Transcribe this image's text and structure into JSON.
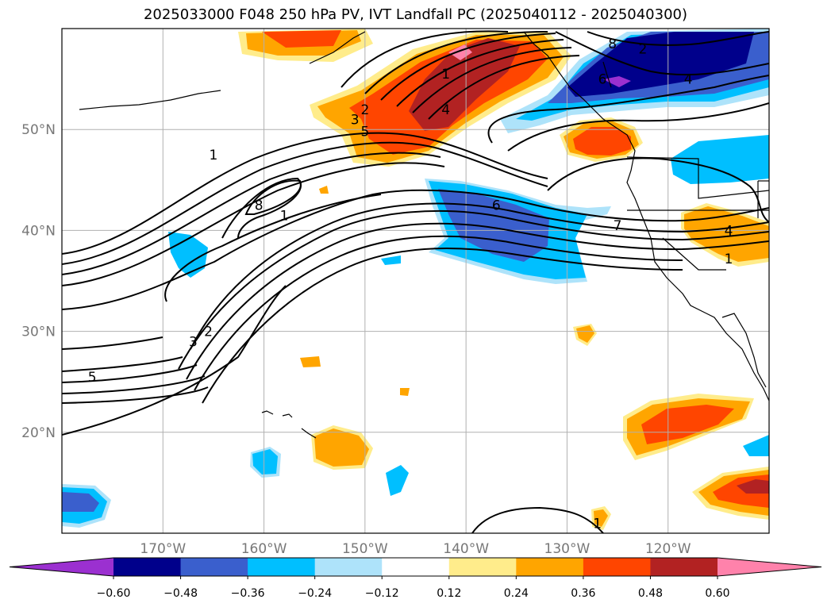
{
  "title": "2025033000 F048 250 hPa PV, IVT Landfall PC (2025040112 - 2025040300)",
  "map": {
    "lon_range": [
      180,
      110
    ],
    "lat_range": [
      10,
      60
    ],
    "lat_ticks": [
      {
        "value": 50,
        "label": "50°N"
      },
      {
        "value": 40,
        "label": "40°N"
      },
      {
        "value": 30,
        "label": "30°N"
      },
      {
        "value": 20,
        "label": "20°N"
      }
    ],
    "lon_ticks": [
      {
        "value": 170,
        "label": "170°W"
      },
      {
        "value": 160,
        "label": "160°W"
      },
      {
        "value": 150,
        "label": "150°W"
      },
      {
        "value": 140,
        "label": "140°W"
      },
      {
        "value": 130,
        "label": "130°W"
      },
      {
        "value": 120,
        "label": "120°W"
      }
    ],
    "grid": true,
    "contour_labels": [
      {
        "text": "1",
        "lon": 165.0,
        "lat": 47.5
      },
      {
        "text": "8",
        "lon": 160.5,
        "lat": 42.5
      },
      {
        "text": "1",
        "lon": 158.0,
        "lat": 41.5
      },
      {
        "text": "2",
        "lon": 150.0,
        "lat": 52.0
      },
      {
        "text": "3",
        "lon": 151.0,
        "lat": 51.0
      },
      {
        "text": "5",
        "lon": 150.0,
        "lat": 49.8
      },
      {
        "text": "1",
        "lon": 142.0,
        "lat": 55.5
      },
      {
        "text": "4",
        "lon": 142.0,
        "lat": 52.0
      },
      {
        "text": "8",
        "lon": 125.5,
        "lat": 58.5
      },
      {
        "text": "2",
        "lon": 122.5,
        "lat": 58.0
      },
      {
        "text": "6",
        "lon": 126.5,
        "lat": 55.0
      },
      {
        "text": "4",
        "lon": 118.0,
        "lat": 55.0
      },
      {
        "text": "6",
        "lon": 137.0,
        "lat": 42.5
      },
      {
        "text": "7",
        "lon": 125.0,
        "lat": 40.5
      },
      {
        "text": "4",
        "lon": 114.0,
        "lat": 40.0
      },
      {
        "text": "1",
        "lon": 114.0,
        "lat": 37.2
      },
      {
        "text": "3",
        "lon": 167.0,
        "lat": 29.0
      },
      {
        "text": "2",
        "lon": 165.5,
        "lat": 30.0
      },
      {
        "text": "5",
        "lon": 177.0,
        "lat": 25.5
      },
      {
        "text": "1",
        "lon": 127.0,
        "lat": 11.0
      }
    ]
  },
  "colorbar": {
    "colors": [
      "#9b30d0",
      "#00008b",
      "#3a5fcd",
      "#00bfff",
      "#aee3fa",
      "#ffffff",
      "#ffec8b",
      "#ffa500",
      "#ff4500",
      "#b22222",
      "#ff82ab"
    ],
    "tick_labels": [
      "−0.60",
      "−0.48",
      "−0.36",
      "−0.24",
      "−0.12",
      "0.12",
      "0.24",
      "0.36",
      "0.48",
      "0.60"
    ],
    "extend": "both"
  }
}
